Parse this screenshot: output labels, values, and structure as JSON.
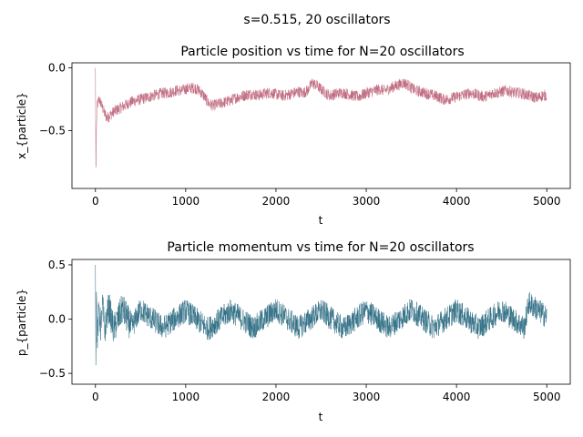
{
  "suptitle": "s=0.515, 20 oscillators",
  "chart_data": [
    {
      "type": "line",
      "title": "Particle position vs time for N=20 oscillators",
      "xlabel": "t",
      "ylabel": "x_{particle}",
      "xlim": [
        -260,
        5260
      ],
      "ylim": [
        -0.96,
        0.04
      ],
      "xticks": [
        0,
        1000,
        2000,
        3000,
        4000,
        5000
      ],
      "xtick_labels": [
        "0",
        "1000",
        "2000",
        "3000",
        "4000",
        "5000"
      ],
      "yticks": [
        0.0,
        -0.5
      ],
      "ytick_labels": [
        "0.0",
        "−0.5"
      ],
      "grid": false,
      "color": "#c0687e",
      "series": [
        {
          "x": [
            0,
            5,
            10,
            20,
            40,
            60,
            80,
            100,
            130,
            160,
            200,
            250,
            300,
            350,
            400,
            450,
            500,
            550,
            600,
            650,
            700,
            750,
            800,
            850,
            900,
            950,
            1000,
            1050,
            1100,
            1150,
            1200,
            1250,
            1300,
            1350,
            1400,
            1450,
            1500,
            1550,
            1600,
            1650,
            1700,
            1750,
            1800,
            1850,
            1900,
            1950,
            2000,
            2050,
            2100,
            2150,
            2200,
            2250,
            2300,
            2350,
            2400,
            2450,
            2500,
            2550,
            2600,
            2650,
            2700,
            2750,
            2800,
            2850,
            2900,
            2950,
            3000,
            3050,
            3100,
            3150,
            3200,
            3250,
            3300,
            3350,
            3400,
            3450,
            3500,
            3550,
            3600,
            3650,
            3700,
            3750,
            3800,
            3850,
            3900,
            3950,
            4000,
            4050,
            4100,
            4150,
            4200,
            4250,
            4300,
            4350,
            4400,
            4450,
            4500,
            4550,
            4600,
            4650,
            4700,
            4750,
            4800,
            4850,
            4900,
            4950,
            5000
          ],
          "values": [
            0.0,
            -0.9,
            -0.5,
            -0.3,
            -0.25,
            -0.28,
            -0.32,
            -0.36,
            -0.4,
            -0.38,
            -0.35,
            -0.33,
            -0.31,
            -0.29,
            -0.27,
            -0.26,
            -0.25,
            -0.24,
            -0.23,
            -0.22,
            -0.21,
            -0.2,
            -0.2,
            -0.19,
            -0.18,
            -0.18,
            -0.17,
            -0.16,
            -0.16,
            -0.18,
            -0.22,
            -0.28,
            -0.3,
            -0.29,
            -0.28,
            -0.27,
            -0.26,
            -0.24,
            -0.23,
            -0.22,
            -0.21,
            -0.21,
            -0.22,
            -0.21,
            -0.2,
            -0.2,
            -0.21,
            -0.22,
            -0.22,
            -0.21,
            -0.2,
            -0.19,
            -0.2,
            -0.18,
            -0.12,
            -0.14,
            -0.17,
            -0.2,
            -0.22,
            -0.21,
            -0.2,
            -0.2,
            -0.21,
            -0.22,
            -0.23,
            -0.22,
            -0.2,
            -0.19,
            -0.18,
            -0.17,
            -0.18,
            -0.17,
            -0.15,
            -0.14,
            -0.12,
            -0.13,
            -0.16,
            -0.18,
            -0.19,
            -0.2,
            -0.21,
            -0.22,
            -0.23,
            -0.25,
            -0.25,
            -0.24,
            -0.23,
            -0.22,
            -0.21,
            -0.2,
            -0.21,
            -0.22,
            -0.23,
            -0.22,
            -0.2,
            -0.2,
            -0.19,
            -0.18,
            -0.19,
            -0.2,
            -0.2,
            -0.21,
            -0.22,
            -0.23,
            -0.24,
            -0.22,
            -0.22
          ]
        }
      ]
    },
    {
      "type": "line",
      "title": "Particle momentum vs time for N=20 oscillators",
      "xlabel": "t",
      "ylabel": "p_{particle}",
      "xlim": [
        -260,
        5260
      ],
      "ylim": [
        -0.6,
        0.55
      ],
      "xticks": [
        0,
        1000,
        2000,
        3000,
        4000,
        5000
      ],
      "xtick_labels": [
        "0",
        "1000",
        "2000",
        "3000",
        "4000",
        "5000"
      ],
      "yticks": [
        0.5,
        0.0,
        -0.5
      ],
      "ytick_labels": [
        "0.5",
        "0.0",
        "−0.5"
      ],
      "grid": false,
      "color": "#306f85",
      "series": [
        {
          "x": [
            0,
            5,
            10,
            20,
            40,
            60,
            80,
            100,
            150,
            200,
            300,
            400,
            500,
            750,
            1000,
            1250,
            1500,
            1750,
            2000,
            2250,
            2500,
            2750,
            3000,
            3250,
            3500,
            3750,
            4000,
            4250,
            4500,
            4750,
            4800,
            5000
          ],
          "values": [
            0.5,
            -0.55,
            0.3,
            -0.2,
            0.1,
            -0.1,
            0.15,
            -0.12,
            0.12,
            -0.1,
            0.1,
            -0.08,
            0.09,
            -0.08,
            0.08,
            -0.09,
            0.08,
            -0.08,
            0.09,
            -0.08,
            0.08,
            -0.09,
            0.08,
            -0.08,
            0.09,
            -0.08,
            0.08,
            -0.08,
            0.09,
            -0.08,
            0.15,
            0.02
          ]
        }
      ]
    }
  ]
}
